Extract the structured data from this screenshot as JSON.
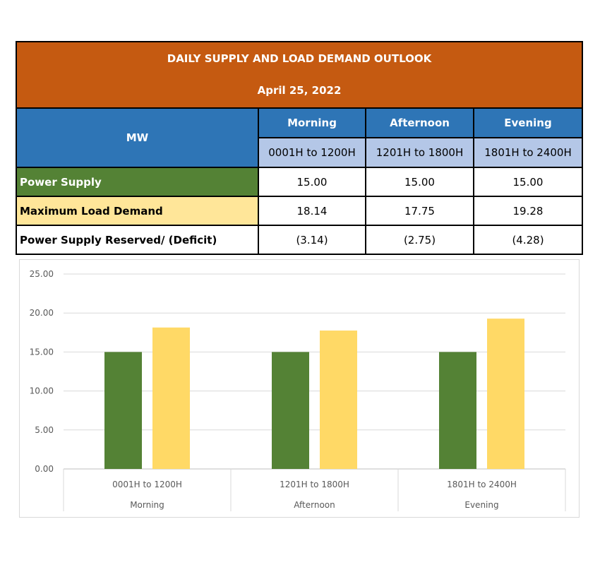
{
  "table": {
    "title": "DAILY SUPPLY AND LOAD DEMAND OUTLOOK",
    "date": "April 25, 2022",
    "unit_label": "MW",
    "periods": [
      {
        "name": "Morning",
        "range": "0001H to 1200H"
      },
      {
        "name": "Afternoon",
        "range": "1201H to 1800H"
      },
      {
        "name": "Evening",
        "range": "1801H to 2400H"
      }
    ],
    "rows": [
      {
        "label": "Power Supply",
        "values": [
          "15.00",
          "15.00",
          "15.00"
        ]
      },
      {
        "label": "Maximum Load Demand",
        "values": [
          "18.14",
          "17.75",
          "19.28"
        ]
      },
      {
        "label": "Power Supply Reserved/ (Deficit)",
        "values": [
          "(3.14)",
          "(2.75)",
          "(4.28)"
        ]
      }
    ]
  },
  "chart_data": {
    "type": "bar",
    "categories": [
      "0001H to 1200H",
      "1201H to 1800H",
      "1801H to 2400H"
    ],
    "category_groups": [
      "Morning",
      "Afternoon",
      "Evening"
    ],
    "series": [
      {
        "values": [
          15.0,
          15.0,
          15.0
        ],
        "color": "#548235"
      },
      {
        "values": [
          18.14,
          17.75,
          19.28
        ],
        "color": "#ffd966"
      }
    ],
    "ylim": [
      0,
      25
    ],
    "yticks": [
      "0.00",
      "5.00",
      "10.00",
      "15.00",
      "20.00",
      "25.00"
    ],
    "grid": true
  }
}
